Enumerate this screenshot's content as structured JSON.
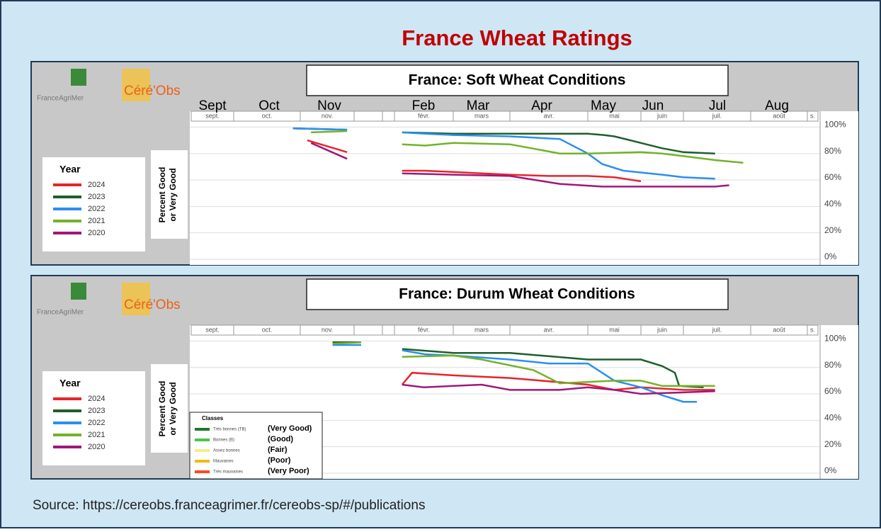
{
  "title": "France Wheat Ratings",
  "source": "Source: https://cereobs.franceagrimer.fr/cereobs-sp/#/publications",
  "chart_data": [
    {
      "type": "line",
      "title": "France: Soft Wheat Conditions",
      "logos": [
        "FranceAgriMer",
        "Céré'Obs"
      ],
      "ylabel": [
        "Percent Good",
        "or Very Good"
      ],
      "categories": [
        "sept.",
        "oct.",
        "nov.",
        null,
        null,
        "févr.",
        "mars",
        "avr.",
        "mai",
        "juin",
        "juil.",
        "août",
        "s."
      ],
      "month_labels_en": [
        "Sept",
        "Oct",
        "Nov",
        "Feb",
        "Mar",
        "Apr",
        "May",
        "Jun",
        "Jul",
        "Aug"
      ],
      "xlim": [
        0,
        13
      ],
      "ylim": [
        0,
        112
      ],
      "yticks": [
        {
          "value": 0,
          "label": "0%"
        },
        {
          "value": 20,
          "label": "20%"
        },
        {
          "value": 40,
          "label": "40%"
        },
        {
          "value": 60,
          "label": "60%"
        },
        {
          "value": 80,
          "label": "80%"
        },
        {
          "value": 100,
          "label": "100%"
        }
      ],
      "grid": true,
      "legend": {
        "title": "Year"
      },
      "series": [
        {
          "name": "2024",
          "color": "#e8242b",
          "x": [
            2.13,
            2.87,
            null,
            5.13,
            5.52,
            6.0,
            6.5,
            7.0,
            7.5,
            8.0,
            8.5,
            9.0
          ],
          "values": [
            90,
            81,
            null,
            67,
            67,
            66,
            65,
            64,
            63,
            63,
            62,
            59
          ]
        },
        {
          "name": "2023",
          "color": "#1e5f2a",
          "x": [
            1.89,
            2.87,
            null,
            5.13,
            6.0,
            7.0,
            8.0,
            8.3,
            8.5,
            9.0,
            9.5,
            10.0,
            10.47
          ],
          "values": [
            99,
            98,
            null,
            96,
            95,
            95,
            95,
            94,
            93,
            88,
            84,
            81,
            80
          ]
        },
        {
          "name": "2022",
          "color": "#2a8ff0",
          "x": [
            1.89,
            2.87,
            null,
            5.13,
            5.52,
            6.0,
            7.0,
            7.64,
            8.0,
            8.27,
            8.67,
            9.5,
            10.0,
            10.47
          ],
          "values": [
            99,
            98,
            null,
            96,
            95,
            94,
            93,
            91,
            80,
            72,
            67,
            64,
            62,
            61
          ]
        },
        {
          "name": "2021",
          "color": "#72b22a",
          "x": [
            2.2,
            2.87,
            null,
            5.13,
            5.52,
            6.0,
            7.0,
            7.64,
            8.0,
            9.0,
            9.5,
            10.0,
            10.47,
            10.89
          ],
          "values": [
            96,
            97,
            null,
            87,
            86,
            88,
            87,
            80,
            80,
            81,
            80,
            78,
            75,
            73
          ]
        },
        {
          "name": "2020",
          "color": "#a0187a",
          "x": [
            2.2,
            2.87,
            null,
            5.13,
            6.0,
            7.0,
            7.64,
            8.27,
            9.0,
            10.47,
            10.68
          ],
          "values": [
            88,
            76,
            null,
            65,
            64,
            63,
            57,
            55,
            55,
            55,
            56
          ]
        }
      ]
    },
    {
      "type": "line",
      "title": "France: Durum Wheat Conditions",
      "logos": [
        "FranceAgriMer",
        "Céré'Obs"
      ],
      "ylabel": [
        "Percent Good",
        "or Very Good"
      ],
      "categories": [
        "sept.",
        "oct.",
        "nov.",
        null,
        null,
        "févr.",
        "mars",
        "avr.",
        "mai",
        "juin",
        "juil.",
        "août",
        "s."
      ],
      "xlim": [
        0,
        13
      ],
      "ylim": [
        0,
        112
      ],
      "yticks": [
        {
          "value": 0,
          "label": "0%"
        },
        {
          "value": 20,
          "label": "20%"
        },
        {
          "value": 40,
          "label": "40%"
        },
        {
          "value": 60,
          "label": "60%"
        },
        {
          "value": 80,
          "label": "80%"
        },
        {
          "value": 100,
          "label": "100%"
        }
      ],
      "grid": true,
      "legend": {
        "title": "Year"
      },
      "series": [
        {
          "name": "2024",
          "color": "#e8242b",
          "x": [
            5.13,
            5.3,
            6.0,
            7.0,
            8.0,
            8.5,
            9.0,
            10.0,
            10.47
          ],
          "values": [
            67,
            76,
            74,
            72,
            67,
            63,
            65,
            63,
            63
          ]
        },
        {
          "name": "2023",
          "color": "#1e5f2a",
          "x": [
            2.6,
            3.25,
            null,
            5.13,
            6.0,
            7.0,
            7.6,
            8.0,
            9.0,
            9.5,
            9.8,
            9.9,
            10.3
          ],
          "values": [
            99,
            99,
            null,
            94,
            91,
            91,
            88,
            86,
            86,
            81,
            76,
            66,
            65
          ]
        },
        {
          "name": "2022",
          "color": "#2a8ff0",
          "x": [
            2.6,
            3.25,
            null,
            5.13,
            5.52,
            6.0,
            7.0,
            7.5,
            8.0,
            8.5,
            9.0,
            9.5,
            10.0,
            10.2
          ],
          "values": [
            97,
            97,
            null,
            93,
            90,
            89,
            86,
            83,
            83,
            70,
            65,
            59,
            54,
            54
          ]
        },
        {
          "name": "2021",
          "color": "#72b22a",
          "x": [
            2.6,
            3.25,
            null,
            5.13,
            6.0,
            6.5,
            7.3,
            7.64,
            8.5,
            9.0,
            9.5,
            10.47
          ],
          "values": [
            98,
            99,
            null,
            88,
            89,
            86,
            78,
            68,
            70,
            70,
            66,
            66
          ]
        },
        {
          "name": "2020",
          "color": "#a0187a",
          "x": [
            5.13,
            5.5,
            6.5,
            7.0,
            7.64,
            8.0,
            8.5,
            9.0,
            10.47
          ],
          "values": [
            67,
            65,
            67,
            63,
            63,
            65,
            63,
            60,
            62
          ]
        }
      ],
      "classes_legend": {
        "title": "Classes",
        "items": [
          {
            "label": "Très bonnes (TB)",
            "translation": "(Very Good)",
            "color": "#1a7a2a"
          },
          {
            "label": "Bonnes (B)",
            "translation": "(Good)",
            "color": "#4cc24c"
          },
          {
            "label": "Assez bonnes",
            "translation": "(Fair)",
            "color": "#f2ee8a"
          },
          {
            "label": "Mauvaises",
            "translation": "(Poor)",
            "color": "#f5b800"
          },
          {
            "label": "Très mauvaises",
            "translation": "(Very Poor)",
            "color": "#ff4a1a"
          }
        ]
      }
    }
  ]
}
